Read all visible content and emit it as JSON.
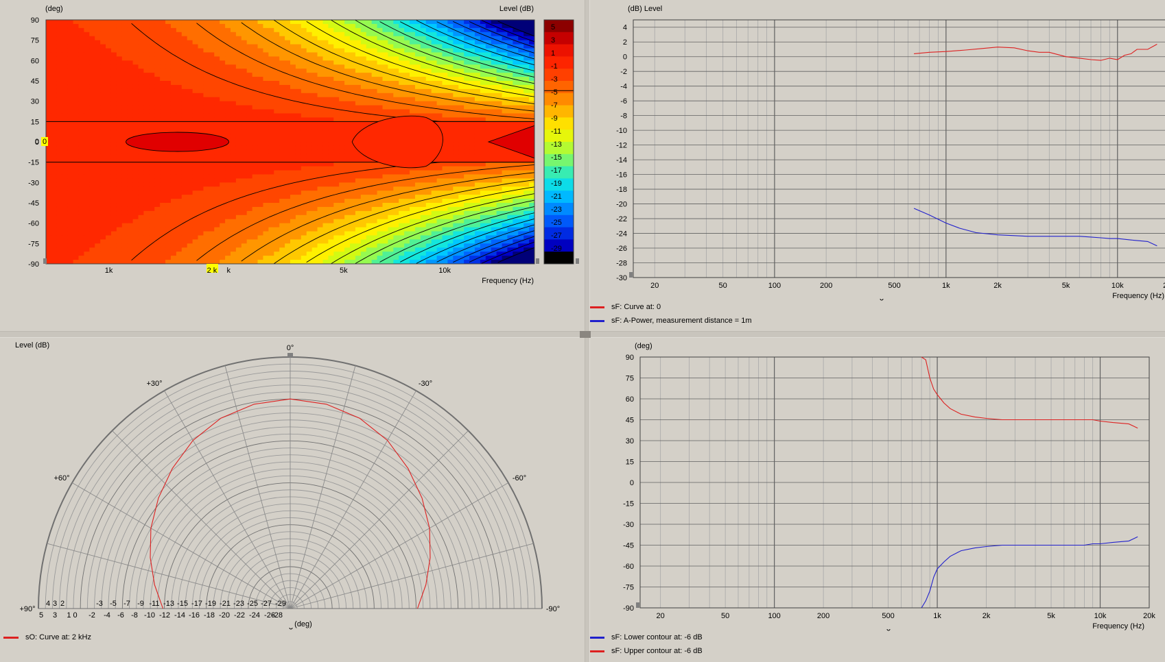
{
  "colors": {
    "background": "#d4d0c8",
    "grid_dark": "#606060",
    "grid_light": "#a8a8a8",
    "red_curve": "#dd2020",
    "blue_curve": "#2020cc",
    "highlight": "#ffff00"
  },
  "contour": {
    "y_unit": "(deg)",
    "level_unit": "Level  (dB)",
    "x_label": "Frequency  (Hz)",
    "y_ticks": [
      "90",
      "75",
      "60",
      "45",
      "30",
      "15",
      "0",
      "-15",
      "-30",
      "-45",
      "-60",
      "-75",
      "-90"
    ],
    "x_ticks": [
      "1k",
      "2 k",
      "k",
      "5k",
      "10k"
    ],
    "cursor_angle": "0",
    "cursor_value": "0",
    "colorbar_labels": [
      "5",
      "3",
      "1",
      "-1",
      "-3",
      "-5",
      "-7",
      "-9",
      "-11",
      "-13",
      "-15",
      "-17",
      "-19",
      "-21",
      "-23",
      "-25",
      "-27",
      "-29"
    ]
  },
  "response": {
    "y_unit": "(dB)  Level",
    "x_label": "Frequency  (Hz)",
    "y_ticks": [
      "4",
      "2",
      "0",
      "-2",
      "-4",
      "-6",
      "-8",
      "-10",
      "-12",
      "-14",
      "-16",
      "-18",
      "-20",
      "-22",
      "-24",
      "-26",
      "-28",
      "-30"
    ],
    "x_ticks": [
      "20",
      "50",
      "100",
      "200",
      "500",
      "1k",
      "2k",
      "5k",
      "10k",
      "20k"
    ],
    "legend": [
      {
        "label": "sF: Curve at: 0",
        "color": "#dd2020"
      },
      {
        "label": "sF: A-Power, measurement distance = 1m",
        "color": "#2020cc"
      }
    ]
  },
  "polar": {
    "unit": "Level  (dB)",
    "deg_label": "(deg)",
    "angle_labels": [
      "0°",
      "+30°",
      "-30°",
      "+60°",
      "-60°",
      "+90°",
      "-90°"
    ],
    "ring_labels_upper": [
      "4",
      "3",
      "2",
      "-3",
      "-5",
      "-7",
      "-9",
      "-11",
      "-13",
      "-15",
      "-17",
      "-19",
      "-21",
      "-23",
      "-25",
      "-27",
      "-29"
    ],
    "ring_labels_lower": [
      "5",
      "3",
      "1 0",
      "-2",
      "-4",
      "-6",
      "-8",
      "-10",
      "-12",
      "-14",
      "-16",
      "-18",
      "-20",
      "-22",
      "-24",
      "-26",
      "-28"
    ],
    "legend": [
      {
        "label": "sO: Curve at: 2 kHz",
        "color": "#dd2020"
      }
    ]
  },
  "beam": {
    "y_unit": "(deg)",
    "x_label": "Frequency  (Hz)",
    "y_ticks": [
      "90",
      "75",
      "60",
      "45",
      "30",
      "15",
      "0",
      "-15",
      "-30",
      "-45",
      "-60",
      "-75",
      "-90"
    ],
    "x_ticks": [
      "20",
      "50",
      "100",
      "200",
      "500",
      "1k",
      "2k",
      "5k",
      "10k",
      "20k"
    ],
    "legend": [
      {
        "label": "sF: Lower contour at: -6 dB",
        "color": "#2020cc"
      },
      {
        "label": "sF: Upper contour at: -6 dB",
        "color": "#dd2020"
      }
    ]
  },
  "chart_data": [
    {
      "type": "heatmap",
      "x_scale": "log",
      "xlim": [
        650,
        18500
      ],
      "ylim": [
        -90,
        90
      ],
      "zlim": [
        -30,
        6
      ],
      "ylabel": "(deg)",
      "zlabel": "Level  (dB)",
      "xlabel": "Frequency  (Hz)",
      "contour_step_db": 2
    },
    {
      "type": "line",
      "x_scale": "log",
      "xlim": [
        15,
        20000
      ],
      "ylim": [
        -30,
        5
      ],
      "xlabel": "Frequency  (Hz)",
      "ylabel": "(dB)  Level",
      "series": [
        {
          "name": "sF: Curve at: 0",
          "color": "#dd2020",
          "x": [
            650,
            800,
            1000,
            1300,
            1600,
            2000,
            2500,
            3000,
            3500,
            4000,
            5000,
            6000,
            7000,
            8000,
            9000,
            10000,
            11000,
            12000,
            13000,
            15000,
            17000
          ],
          "y": [
            0.4,
            0.6,
            0.7,
            0.9,
            1.1,
            1.3,
            1.2,
            0.8,
            0.6,
            0.6,
            0.0,
            -0.2,
            -0.4,
            -0.5,
            -0.2,
            -0.4,
            0.2,
            0.4,
            1.0,
            1.0,
            1.7
          ]
        },
        {
          "name": "sF: A-Power, measurement distance = 1m",
          "color": "#2020cc",
          "x": [
            650,
            800,
            1000,
            1200,
            1500,
            2000,
            2500,
            3000,
            4000,
            5000,
            6000,
            7000,
            8000,
            9000,
            10000,
            12000,
            15000,
            17000
          ],
          "y": [
            -20.6,
            -21.5,
            -22.6,
            -23.3,
            -23.9,
            -24.2,
            -24.3,
            -24.4,
            -24.4,
            -24.4,
            -24.4,
            -24.5,
            -24.6,
            -24.7,
            -24.7,
            -24.9,
            -25.1,
            -25.7
          ]
        }
      ]
    },
    {
      "type": "line",
      "subtype": "polar",
      "angle_range": [
        -90,
        90
      ],
      "r_range_db": [
        -30,
        6
      ],
      "series": [
        {
          "name": "sO: Curve at: 2 kHz",
          "color": "#dd2020",
          "angles": [
            0,
            10,
            20,
            30,
            40,
            50,
            60,
            70,
            80,
            90
          ],
          "levels": [
            0,
            -0.3,
            -1.0,
            -2.2,
            -3.8,
            -5.4,
            -7.0,
            -8.7,
            -10.3,
            -11.8
          ]
        }
      ]
    },
    {
      "type": "line",
      "x_scale": "log",
      "xlim": [
        15,
        20000
      ],
      "ylim": [
        -90,
        90
      ],
      "xlabel": "Frequency  (Hz)",
      "ylabel": "(deg)",
      "series": [
        {
          "name": "sF: Lower contour at: -6 dB",
          "color": "#2020cc",
          "x": [
            800,
            850,
            900,
            950,
            1000,
            1100,
            1200,
            1400,
            1700,
            2000,
            2500,
            3000,
            4000,
            5000,
            6000,
            7000,
            8000,
            9000,
            10000,
            12000,
            15000,
            17000
          ],
          "y": [
            -90,
            -85,
            -78,
            -68,
            -62,
            -57,
            -53,
            -49,
            -47,
            -46,
            -45,
            -45,
            -45,
            -45,
            -45,
            -45,
            -45,
            -44,
            -44,
            -43,
            -42,
            -39
          ]
        },
        {
          "name": "sF: Upper contour at: -6 dB",
          "color": "#dd2020",
          "x": [
            800,
            850,
            900,
            950,
            1000,
            1100,
            1200,
            1400,
            1700,
            2000,
            2500,
            3000,
            4000,
            5000,
            6000,
            7000,
            8000,
            9000,
            10000,
            12000,
            15000,
            17000
          ],
          "y": [
            90,
            88,
            75,
            67,
            63,
            57,
            53,
            49,
            47,
            46,
            45,
            45,
            45,
            45,
            45,
            45,
            45,
            45,
            44,
            43,
            42,
            39
          ]
        }
      ]
    }
  ]
}
